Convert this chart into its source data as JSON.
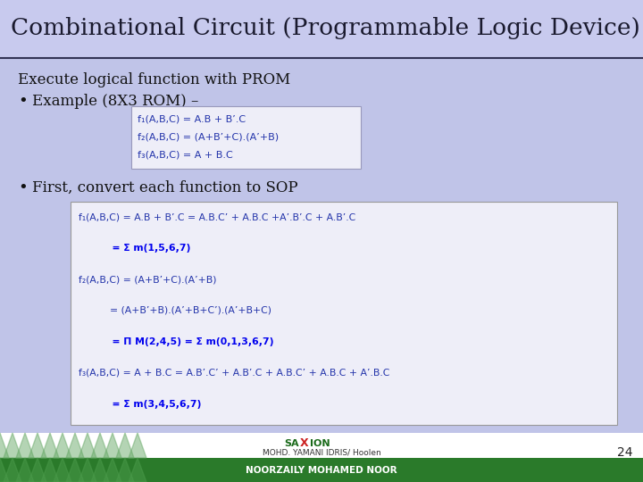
{
  "title": "Combinational Circuit (Programmable Logic Device)",
  "title_color": "#1a1a2e",
  "bg_color": "#c0c4e8",
  "title_bg": "#c8caee",
  "footer_green": "#2a7a2a",
  "footer_white": "#ffffff",
  "footer_text1": "MOHD. YAMANI IDRIS/",
  "footer_text2": "NOORZAILY MOHAMED NOOR",
  "page_num": "24",
  "body_text1": "Execute logical function with PROM",
  "bullet1": "Example (8X3 ROM) –",
  "bullet2": "First, convert each function to SOP",
  "box1_lines": [
    "f₁(A,B,C) = A.B + B’.C",
    "f₂(A,B,C) = (A+B’+C).(A’+B)",
    "f₃(A,B,C) = A + B.C"
  ],
  "box2_line0": "f₁(A,B,C) = A.B + B’.C = A.B.C’ + A.B.C +A’.B’.C + A.B’.C",
  "box2_line1": "          = Σ m(1,5,6,7)",
  "box2_line2": "f₂(A,B,C) = (A+B’+C).(A’+B)",
  "box2_line3": "          = (A+B’+B).(A’+B+C’).(A’+B+C)",
  "box2_line4": "          = Π M(2,4,5) = Σ m(0,1,3,6,7)",
  "box2_line5": "f₃(A,B,C) = A + B.C = A.B’.C’ + A.B’.C + A.B.C’ + A.B.C + A’.B.C",
  "box2_line6": "          = Σ m(3,4,5,6,7)",
  "dark_blue": "#2233aa",
  "mid_blue": "#3344bb",
  "bright_blue": "#0000ee",
  "box_bg": "#eeeef8",
  "box_border": "#aaaacc",
  "text_dark": "#111111"
}
